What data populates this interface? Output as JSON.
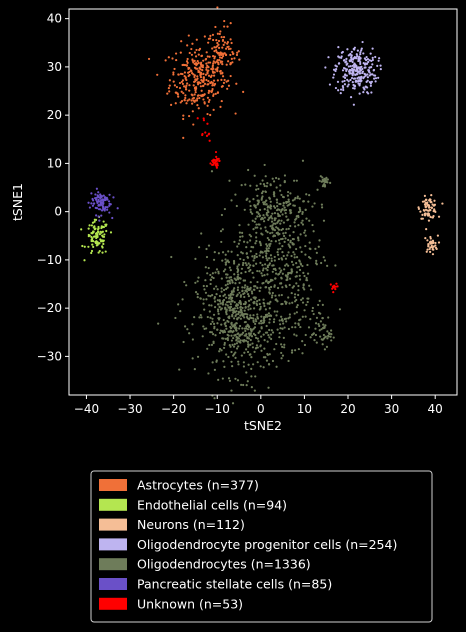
{
  "chart_data": {
    "type": "scatter",
    "xlabel": "tSNE2",
    "ylabel": "tSNE1",
    "xlim": [
      -44,
      45
    ],
    "ylim": [
      -38,
      42
    ],
    "xticks": [
      -40,
      -30,
      -20,
      -10,
      0,
      10,
      20,
      30,
      40
    ],
    "yticks": [
      -30,
      -20,
      -10,
      0,
      10,
      20,
      30,
      40
    ],
    "xtick_labels": [
      "−40",
      "−30",
      "−20",
      "−10",
      "0",
      "10",
      "20",
      "30",
      "40"
    ],
    "ytick_labels": [
      "−30",
      "−20",
      "−10",
      "0",
      "10",
      "20",
      "30",
      "40"
    ],
    "grid": false,
    "legend_position": "below",
    "series": [
      {
        "name": "Astrocytes (n=377)",
        "color": "#f07038",
        "count": 377,
        "clusters": [
          {
            "cx": -14.5,
            "cy": 27.5,
            "sx": 3.2,
            "sy": 3.6,
            "weight": 0.72
          },
          {
            "cx": -9.0,
            "cy": 32.5,
            "sx": 2.2,
            "sy": 3.0,
            "weight": 0.28
          }
        ]
      },
      {
        "name": "Endothelial cells (n=94)",
        "color": "#b4e650",
        "count": 94,
        "clusters": [
          {
            "cx": -37.5,
            "cy": -5.5,
            "sx": 1.3,
            "sy": 1.8,
            "weight": 1
          }
        ]
      },
      {
        "name": "Neurons (n=112)",
        "color": "#f5be96",
        "count": 112,
        "clusters": [
          {
            "cx": 38.5,
            "cy": 0.8,
            "sx": 1.0,
            "sy": 1.1,
            "weight": 0.7
          },
          {
            "cx": 39.0,
            "cy": -6.8,
            "sx": 0.8,
            "sy": 0.9,
            "weight": 0.3
          }
        ]
      },
      {
        "name": "Oligodendrocyte progenitor cells (n=254)",
        "color": "#beb4f0",
        "count": 254,
        "clusters": [
          {
            "cx": 21.8,
            "cy": 29.3,
            "sx": 2.4,
            "sy": 2.5,
            "weight": 1
          }
        ]
      },
      {
        "name": "Oligodendrocytes (n=1336)",
        "color": "#6e7c5a",
        "count": 1336,
        "clusters": [
          {
            "cx": -4.0,
            "cy": -24.0,
            "sx": 5.2,
            "sy": 5.0,
            "weight": 0.38
          },
          {
            "cx": -7.0,
            "cy": -14.5,
            "sx": 4.5,
            "sy": 4.0,
            "weight": 0.14
          },
          {
            "cx": 4.0,
            "cy": -9.0,
            "sx": 5.0,
            "sy": 5.2,
            "weight": 0.2
          },
          {
            "cx": 3.0,
            "cy": 1.0,
            "sx": 4.2,
            "sy": 3.5,
            "weight": 0.17
          },
          {
            "cx": 8.0,
            "cy": -19.5,
            "sx": 3.0,
            "sy": 4.0,
            "weight": 0.06
          },
          {
            "cx": 14.5,
            "cy": -25.5,
            "sx": 1.2,
            "sy": 1.2,
            "weight": 0.03
          },
          {
            "cx": 14.5,
            "cy": 6.3,
            "sx": 0.5,
            "sy": 0.8,
            "weight": 0.02
          }
        ]
      },
      {
        "name": "Pancreatic stellate cells (n=85)",
        "color": "#6a50c8",
        "count": 85,
        "clusters": [
          {
            "cx": -36.8,
            "cy": 2.0,
            "sx": 1.2,
            "sy": 1.3,
            "weight": 1
          }
        ]
      },
      {
        "name": "Unknown (n=53)",
        "color": "#ff0000",
        "count": 53,
        "clusters": [
          {
            "cx": -10.5,
            "cy": 10.2,
            "sx": 0.6,
            "sy": 0.6,
            "weight": 0.6
          },
          {
            "cx": -13.0,
            "cy": 18.0,
            "sx": 0.8,
            "sy": 2.0,
            "weight": 0.2
          },
          {
            "cx": 16.7,
            "cy": -16.5,
            "sx": 0.6,
            "sy": 0.8,
            "weight": 0.2
          }
        ]
      }
    ]
  }
}
